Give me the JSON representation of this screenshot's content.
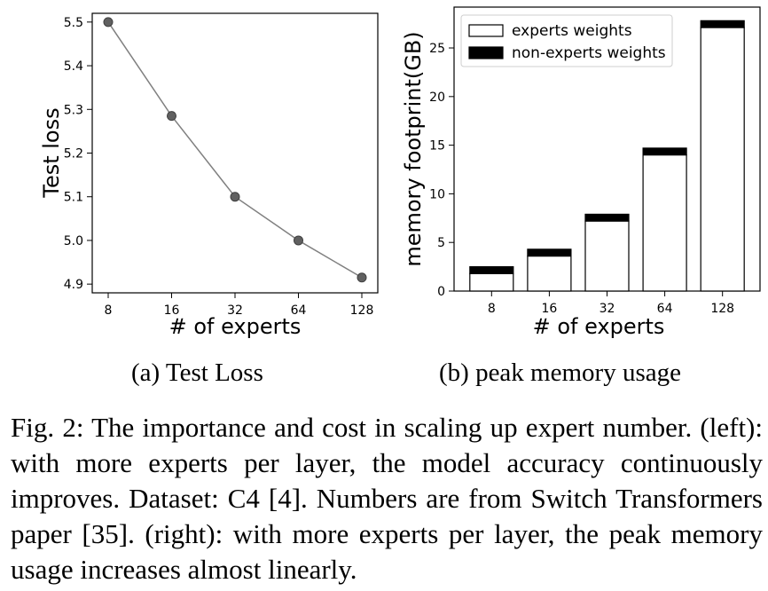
{
  "chart_data": [
    {
      "type": "line",
      "x": [
        "8",
        "16",
        "32",
        "64",
        "128"
      ],
      "values": [
        5.5,
        5.285,
        5.1,
        5.0,
        4.915
      ],
      "xlabel": "# of experts",
      "ylabel": "Test loss",
      "yticks": [
        "4.9",
        "5.0",
        "5.1",
        "5.2",
        "5.3",
        "5.4",
        "5.5"
      ],
      "ylim": [
        4.88,
        5.52
      ],
      "grid": false,
      "series_color": "#808080",
      "marker_color": "#606060"
    },
    {
      "type": "bar",
      "stacked": true,
      "categories": [
        "8",
        "16",
        "32",
        "64",
        "128"
      ],
      "series": [
        {
          "name": "experts weights",
          "values": [
            1.8,
            3.6,
            7.2,
            14.0,
            27.1
          ],
          "color": "#ffffff"
        },
        {
          "name": "non-experts weights",
          "values": [
            0.7,
            0.7,
            0.7,
            0.7,
            0.7
          ],
          "color": "#000000"
        }
      ],
      "xlabel": "# of experts",
      "ylabel": "memory footprint(GB)",
      "yticks": [
        "0",
        "5",
        "10",
        "15",
        "20",
        "25"
      ],
      "ylim": [
        0,
        29.2
      ],
      "legend_position": "top-left",
      "grid": false
    }
  ],
  "subcaptions": {
    "a": "(a) Test Loss",
    "b": "(b) peak memory usage"
  },
  "caption": "Fig. 2: The importance and cost in scaling up expert number. (left): with more experts per layer, the model accuracy continuously improves. Dataset: C4 [4]. Numbers are from Switch Transformers paper [35]. (right): with more experts per layer, the peak memory usage increases almost linearly."
}
